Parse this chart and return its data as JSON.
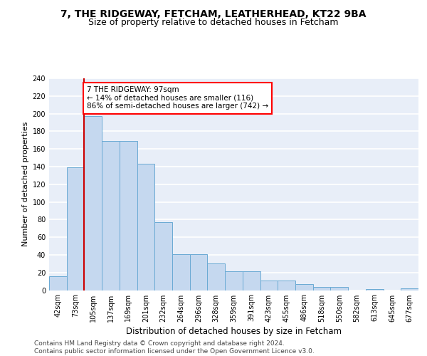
{
  "title1": "7, THE RIDGEWAY, FETCHAM, LEATHERHEAD, KT22 9BA",
  "title2": "Size of property relative to detached houses in Fetcham",
  "xlabel": "Distribution of detached houses by size in Fetcham",
  "ylabel": "Number of detached properties",
  "categories": [
    "42sqm",
    "73sqm",
    "105sqm",
    "137sqm",
    "169sqm",
    "201sqm",
    "232sqm",
    "264sqm",
    "296sqm",
    "328sqm",
    "359sqm",
    "391sqm",
    "423sqm",
    "455sqm",
    "486sqm",
    "518sqm",
    "550sqm",
    "582sqm",
    "613sqm",
    "645sqm",
    "677sqm"
  ],
  "bar_values": [
    16,
    139,
    197,
    169,
    169,
    143,
    77,
    41,
    41,
    30,
    21,
    21,
    11,
    11,
    7,
    4,
    4,
    0,
    1,
    0,
    2
  ],
  "vline_x": 1.5,
  "annotation_text": "7 THE RIDGEWAY: 97sqm\n← 14% of detached houses are smaller (116)\n86% of semi-detached houses are larger (742) →",
  "annotation_box_color": "white",
  "annotation_box_edge": "red",
  "footer": "Contains HM Land Registry data © Crown copyright and database right 2024.\nContains public sector information licensed under the Open Government Licence v3.0.",
  "ylim_max": 240,
  "yticks": [
    0,
    20,
    40,
    60,
    80,
    100,
    120,
    140,
    160,
    180,
    200,
    220,
    240
  ],
  "bar_color": "#c5d8ef",
  "bar_edge_color": "#6aaad4",
  "vline_color": "#cc0000",
  "bg_color": "#e8eef8",
  "grid_color": "white",
  "title1_fontsize": 10,
  "title2_fontsize": 9,
  "axis_label_fontsize": 8.5,
  "ylabel_fontsize": 8,
  "tick_fontsize": 7,
  "annotation_fontsize": 7.5,
  "footer_fontsize": 6.5
}
